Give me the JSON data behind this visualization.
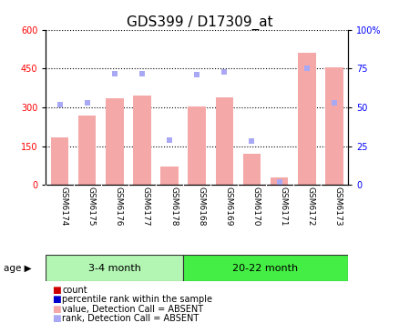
{
  "title": "GDS399 / D17309_at",
  "samples": [
    "GSM6174",
    "GSM6175",
    "GSM6176",
    "GSM6177",
    "GSM6178",
    "GSM6168",
    "GSM6169",
    "GSM6170",
    "GSM6171",
    "GSM6172",
    "GSM6173"
  ],
  "bar_values": [
    185,
    270,
    335,
    345,
    70,
    305,
    340,
    120,
    30,
    510,
    455
  ],
  "rank_values": [
    52,
    53,
    72,
    72,
    29,
    71,
    73,
    28,
    2,
    75,
    53
  ],
  "bar_color": "#f4a8a8",
  "rank_color": "#a8a8f4",
  "ylim_left": [
    0,
    600
  ],
  "ylim_right": [
    0,
    100
  ],
  "yticks_left": [
    0,
    150,
    300,
    450,
    600
  ],
  "yticks_right": [
    0,
    25,
    50,
    75,
    100
  ],
  "ytick_labels_right": [
    "0",
    "25",
    "50",
    "75",
    "100%"
  ],
  "group1_label": "3-4 month",
  "group2_label": "20-22 month",
  "group1_indices": [
    0,
    1,
    2,
    3,
    4
  ],
  "group2_indices": [
    5,
    6,
    7,
    8,
    9,
    10
  ],
  "background_color": "#ffffff",
  "tick_area_color": "#d3d3d3",
  "group1_bg": "#b3f5b3",
  "group2_bg": "#44ee44",
  "colors_legend": [
    "#cc0000",
    "#0000cc",
    "#f4a8a8",
    "#a8a8f4"
  ],
  "labels_legend": [
    "count",
    "percentile rank within the sample",
    "value, Detection Call = ABSENT",
    "rank, Detection Call = ABSENT"
  ],
  "title_fontsize": 11,
  "tick_fontsize": 7,
  "label_fontsize": 7.5
}
